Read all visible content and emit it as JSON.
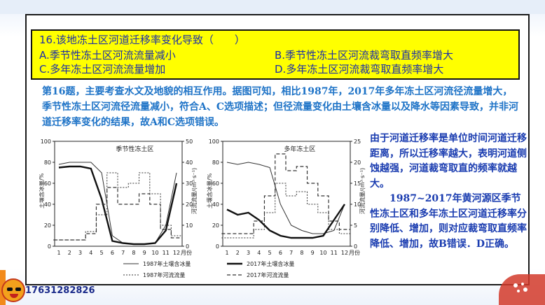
{
  "question": {
    "title": "16.该地冻土区河道迁移率变化导致（　　）",
    "option_a": "A.季节性冻土区河流流量减小",
    "option_b": "B.季节性冻土区河流裁弯取直频率增大",
    "option_c": "C.多年冻土区河流流量增加",
    "option_d": "D.多年冻土区河流裁弯取直频率增大"
  },
  "explanation": "第16题，主要考查水文及地貌的相互作用。据图可知，相比1987年，2017年多年冻土区河流径流量增大，季节性冻土区河流径流量减小，符合A、C选项描述；但径流量变化由土壤含冰量以及降水等因素导致，并非河道迁移率变化的结果，故A和C选项错误。",
  "side_text": {
    "para1": "由于河道迁移率是单位时间河道迁移距离，所以迁移率越大，表明河道侧蚀越强，河道裁弯取直的频率就越大。",
    "para2": "1987~2017年黄河源区季节性冻土区和多年冻土区河道迁移率分别降低、增加，则对应裁弯取直频率降低、增加，故B错误．D正确。"
  },
  "charts": {
    "left_title": "季节性冻土区",
    "right_title": "多年冻土区",
    "y_left_label": "土壤含冰量/%",
    "y_right_label": "河流流量/(m³·s⁻¹)",
    "x_unit": "月份",
    "legend": {
      "ice_1987": "1987年土壤含冰量",
      "ice_2017": "2017年土壤含冰量",
      "flow_1987": "1987年河流流量",
      "flow_2017": "2017年河流流量"
    },
    "left_y_ticks": [
      "0",
      "20",
      "40",
      "60",
      "80",
      "100"
    ],
    "left_y2_ticks": [
      "0",
      "10",
      "20",
      "30",
      "40",
      "50"
    ],
    "right_y_ticks": [
      "0",
      "20",
      "40",
      "60",
      "80",
      "100"
    ],
    "right_y2_ticks": [
      "0",
      "5",
      "10",
      "15",
      "20",
      "25"
    ],
    "x_ticks": [
      "1",
      "2",
      "3",
      "4",
      "5",
      "6",
      "7",
      "8",
      "9",
      "10",
      "11",
      "12"
    ]
  },
  "chart_data": [
    {
      "type": "line",
      "title": "季节性冻土区",
      "x": [
        1,
        2,
        3,
        4,
        5,
        6,
        7,
        8,
        9,
        10,
        11,
        12
      ],
      "ylim": [
        0,
        100
      ],
      "y2lim": [
        0,
        50
      ],
      "series": [
        {
          "name": "1987年土壤含冰量",
          "axis": "left",
          "values": [
            78,
            80,
            80,
            80,
            70,
            10,
            3,
            2,
            2,
            3,
            20,
            70
          ]
        },
        {
          "name": "2017年土壤含冰量",
          "axis": "left",
          "values": [
            75,
            76,
            76,
            74,
            45,
            5,
            3,
            2,
            2,
            3,
            15,
            60
          ]
        },
        {
          "name": "1987年河流流量",
          "axis": "right",
          "values": [
            3,
            3,
            3,
            7,
            15,
            35,
            28,
            30,
            35,
            25,
            10,
            5
          ]
        },
        {
          "name": "2017年河流流量",
          "axis": "right",
          "values": [
            3,
            3,
            3,
            6,
            20,
            28,
            20,
            20,
            25,
            20,
            8,
            4
          ]
        }
      ]
    },
    {
      "type": "line",
      "title": "多年冻土区",
      "x": [
        1,
        2,
        3,
        4,
        5,
        6,
        7,
        8,
        9,
        10,
        11,
        12
      ],
      "ylim": [
        0,
        100
      ],
      "y2lim": [
        0,
        25
      ],
      "series": [
        {
          "name": "1987年土壤含冰量",
          "axis": "left",
          "values": [
            80,
            78,
            80,
            78,
            75,
            40,
            20,
            15,
            12,
            12,
            15,
            40
          ]
        },
        {
          "name": "2017年土壤含冰量",
          "axis": "left",
          "values": [
            35,
            30,
            32,
            25,
            15,
            10,
            8,
            8,
            8,
            10,
            25,
            40
          ]
        },
        {
          "name": "1987年河流流量",
          "axis": "right",
          "values": [
            2,
            2,
            2,
            4,
            8,
            15,
            12,
            13,
            10,
            8,
            4,
            3
          ]
        },
        {
          "name": "2017年河流流量",
          "axis": "right",
          "values": [
            3,
            3,
            3,
            6,
            12,
            22,
            18,
            19,
            15,
            12,
            6,
            4
          ]
        }
      ]
    }
  ],
  "footer": {
    "phone": "17631282826"
  }
}
